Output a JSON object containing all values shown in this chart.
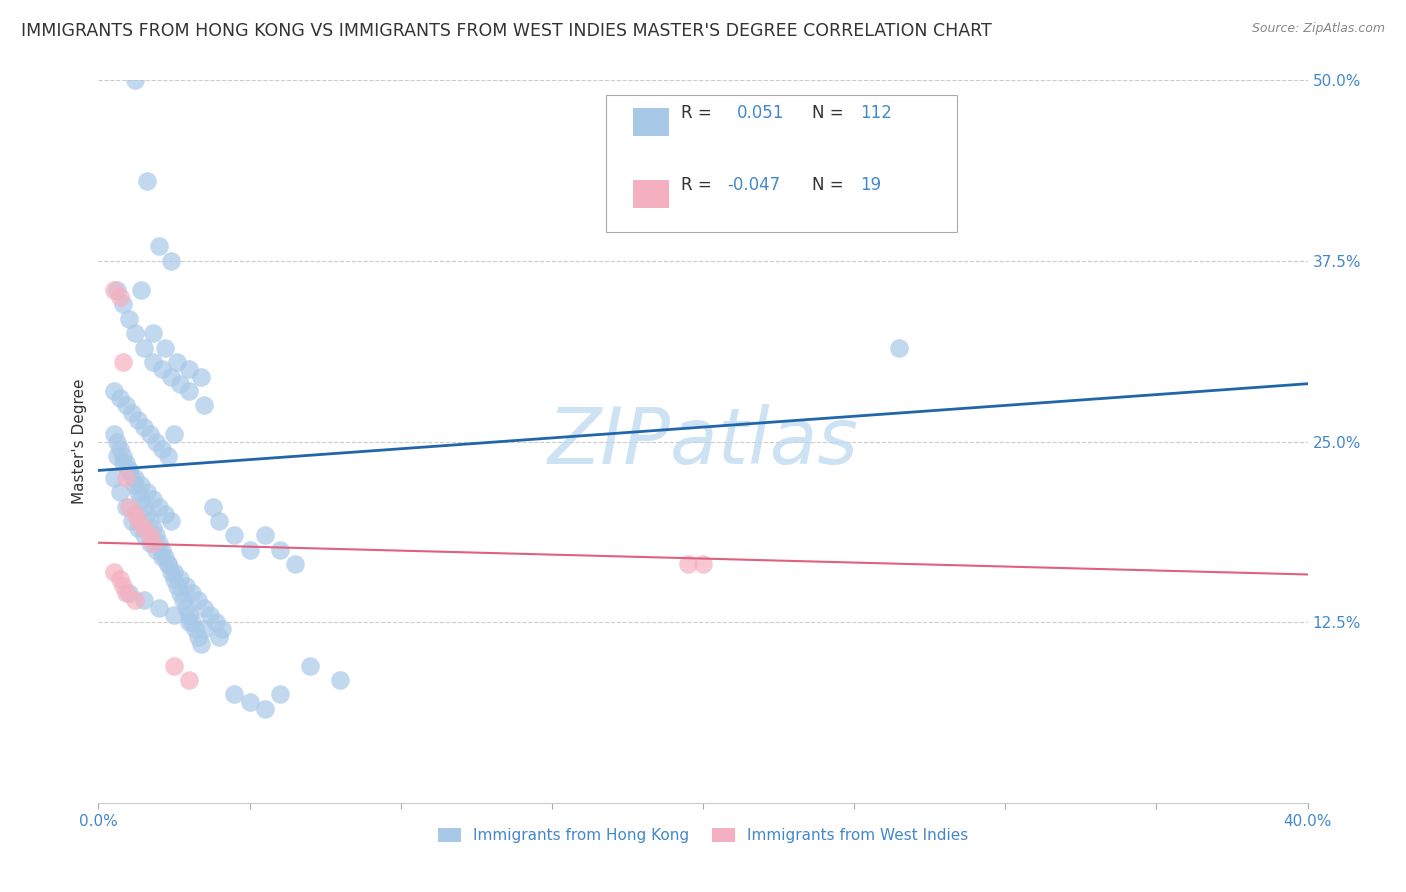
{
  "title": "IMMIGRANTS FROM HONG KONG VS IMMIGRANTS FROM WEST INDIES MASTER'S DEGREE CORRELATION CHART",
  "source": "Source: ZipAtlas.com",
  "ylabel_left": "Master's Degree",
  "legend_label_blue": "Immigrants from Hong Kong",
  "legend_label_pink": "Immigrants from West Indies",
  "R_blue": 0.051,
  "N_blue": 112,
  "R_pink": -0.047,
  "N_pink": 19,
  "xlim": [
    0.0,
    0.4
  ],
  "ylim": [
    0.0,
    0.5
  ],
  "yticks_right": [
    0.125,
    0.25,
    0.375,
    0.5
  ],
  "ytick_labels_right": [
    "12.5%",
    "25.0%",
    "37.5%",
    "50.0%"
  ],
  "xticks": [
    0.0,
    0.05,
    0.1,
    0.15,
    0.2,
    0.25,
    0.3,
    0.35,
    0.4
  ],
  "xtick_labels": [
    "0.0%",
    "",
    "",
    "",
    "",
    "",
    "",
    "",
    "40.0%"
  ],
  "color_blue": "#A8C8E8",
  "color_blue_line": "#2266AA",
  "color_pink": "#F4B0C0",
  "color_pink_line": "#E06080",
  "watermark": "ZIPatlas",
  "watermark_color": "#B8D8F0",
  "title_fontsize": 12.5,
  "axis_label_fontsize": 11,
  "tick_fontsize": 11,
  "blue_scatter_x": [
    0.012,
    0.016,
    0.02,
    0.024,
    0.014,
    0.018,
    0.022,
    0.026,
    0.03,
    0.034,
    0.006,
    0.008,
    0.01,
    0.012,
    0.015,
    0.018,
    0.021,
    0.024,
    0.027,
    0.03,
    0.005,
    0.007,
    0.009,
    0.011,
    0.013,
    0.015,
    0.017,
    0.019,
    0.021,
    0.023,
    0.006,
    0.008,
    0.01,
    0.012,
    0.014,
    0.016,
    0.018,
    0.02,
    0.022,
    0.024,
    0.005,
    0.006,
    0.007,
    0.008,
    0.009,
    0.01,
    0.011,
    0.012,
    0.013,
    0.014,
    0.015,
    0.016,
    0.017,
    0.018,
    0.019,
    0.02,
    0.021,
    0.022,
    0.023,
    0.024,
    0.025,
    0.026,
    0.027,
    0.028,
    0.029,
    0.03,
    0.031,
    0.032,
    0.033,
    0.034,
    0.035,
    0.038,
    0.04,
    0.045,
    0.05,
    0.055,
    0.06,
    0.065,
    0.07,
    0.08,
    0.005,
    0.007,
    0.009,
    0.011,
    0.013,
    0.015,
    0.017,
    0.019,
    0.021,
    0.023,
    0.025,
    0.027,
    0.029,
    0.031,
    0.033,
    0.035,
    0.037,
    0.039,
    0.041,
    0.025,
    0.01,
    0.015,
    0.02,
    0.025,
    0.03,
    0.035,
    0.04,
    0.045,
    0.05,
    0.055,
    0.265,
    0.06
  ],
  "blue_scatter_y": [
    0.5,
    0.43,
    0.385,
    0.375,
    0.355,
    0.325,
    0.315,
    0.305,
    0.3,
    0.295,
    0.355,
    0.345,
    0.335,
    0.325,
    0.315,
    0.305,
    0.3,
    0.295,
    0.29,
    0.285,
    0.285,
    0.28,
    0.275,
    0.27,
    0.265,
    0.26,
    0.255,
    0.25,
    0.245,
    0.24,
    0.24,
    0.235,
    0.23,
    0.225,
    0.22,
    0.215,
    0.21,
    0.205,
    0.2,
    0.195,
    0.255,
    0.25,
    0.245,
    0.24,
    0.235,
    0.23,
    0.225,
    0.22,
    0.215,
    0.21,
    0.205,
    0.2,
    0.195,
    0.19,
    0.185,
    0.18,
    0.175,
    0.17,
    0.165,
    0.16,
    0.155,
    0.15,
    0.145,
    0.14,
    0.135,
    0.13,
    0.125,
    0.12,
    0.115,
    0.11,
    0.275,
    0.205,
    0.195,
    0.185,
    0.175,
    0.185,
    0.175,
    0.165,
    0.095,
    0.085,
    0.225,
    0.215,
    0.205,
    0.195,
    0.19,
    0.185,
    0.18,
    0.175,
    0.17,
    0.165,
    0.16,
    0.155,
    0.15,
    0.145,
    0.14,
    0.135,
    0.13,
    0.125,
    0.12,
    0.255,
    0.145,
    0.14,
    0.135,
    0.13,
    0.125,
    0.12,
    0.115,
    0.075,
    0.07,
    0.065,
    0.315,
    0.075
  ],
  "pink_scatter_x": [
    0.005,
    0.007,
    0.008,
    0.009,
    0.01,
    0.012,
    0.013,
    0.015,
    0.017,
    0.018,
    0.005,
    0.007,
    0.008,
    0.009,
    0.012,
    0.195,
    0.2,
    0.025,
    0.03
  ],
  "pink_scatter_y": [
    0.355,
    0.35,
    0.305,
    0.225,
    0.205,
    0.2,
    0.195,
    0.19,
    0.185,
    0.18,
    0.16,
    0.155,
    0.15,
    0.145,
    0.14,
    0.165,
    0.165,
    0.095,
    0.085
  ],
  "blue_line_x": [
    0.0,
    0.4
  ],
  "blue_line_y_start": 0.23,
  "blue_line_y_end": 0.29,
  "pink_line_x": [
    0.0,
    0.4
  ],
  "pink_line_y_start": 0.18,
  "pink_line_y_end": 0.158,
  "background_color": "#FFFFFF",
  "grid_color": "#CCCCCC"
}
